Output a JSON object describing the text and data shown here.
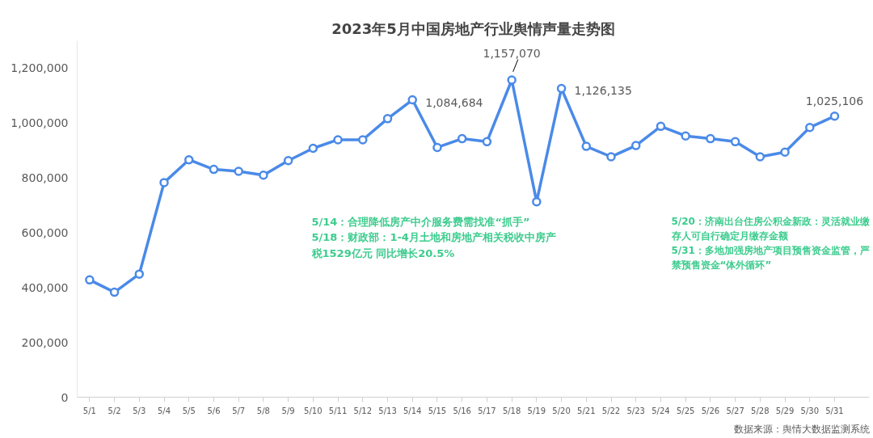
{
  "chart_data": {
    "type": "line",
    "title": "2023年5月中国房地产行业舆情声量走势图",
    "categories": [
      "5/1",
      "5/2",
      "5/3",
      "5/4",
      "5/5",
      "5/6",
      "5/7",
      "5/8",
      "5/9",
      "5/10",
      "5/11",
      "5/12",
      "5/13",
      "5/14",
      "5/15",
      "5/16",
      "5/17",
      "5/18",
      "5/19",
      "5/20",
      "5/21",
      "5/22",
      "5/23",
      "5/24",
      "5/25",
      "5/26",
      "5/27",
      "5/28",
      "5/29",
      "5/30",
      "5/31"
    ],
    "series": [
      {
        "color": "#4a8ae8",
        "values": [
          428000,
          383000,
          449000,
          783000,
          866000,
          831000,
          824000,
          810000,
          863000,
          908000,
          939000,
          939000,
          1016000,
          1084684,
          911000,
          943000,
          932000,
          1157070,
          713000,
          1126135,
          915000,
          877000,
          918000,
          988000,
          953000,
          943000,
          932000,
          877000,
          894000,
          984000,
          1025106
        ],
        "value_labels": [
          null,
          null,
          null,
          null,
          null,
          null,
          null,
          null,
          null,
          null,
          null,
          null,
          null,
          "1,084,684",
          null,
          null,
          null,
          "1,157,070",
          null,
          "1,126,135",
          null,
          null,
          null,
          null,
          null,
          null,
          null,
          null,
          null,
          null,
          "1,025,106"
        ]
      }
    ],
    "ylim": [
      0,
      1300000
    ],
    "yticks": [
      {
        "value": 0,
        "label": "0"
      },
      {
        "value": 200000,
        "label": "200,000"
      },
      {
        "value": 400000,
        "label": "400,000"
      },
      {
        "value": 600000,
        "label": "600,000"
      },
      {
        "value": 800000,
        "label": "800,000"
      },
      {
        "value": 1000000,
        "label": "1,000,000"
      },
      {
        "value": 1200000,
        "label": "1,200,000"
      }
    ],
    "grid": false,
    "marker": "circle",
    "line_style": "solid",
    "annotations": [
      "5/14：合理降低房产中介服务费需找准“抓手”\n5/18：财政部：1-4月土地和房地产相关税收中房产税1529亿元 同比增长20.5%",
      "5/20：济南出台住房公积金新政：灵活就业缴存人可自行确定月缴存金额\n5/31：多地加强房地产项目预售资金监管，严禁预售资金“体外循环”",
      "数据来源：舆情大数据监测系统"
    ]
  }
}
